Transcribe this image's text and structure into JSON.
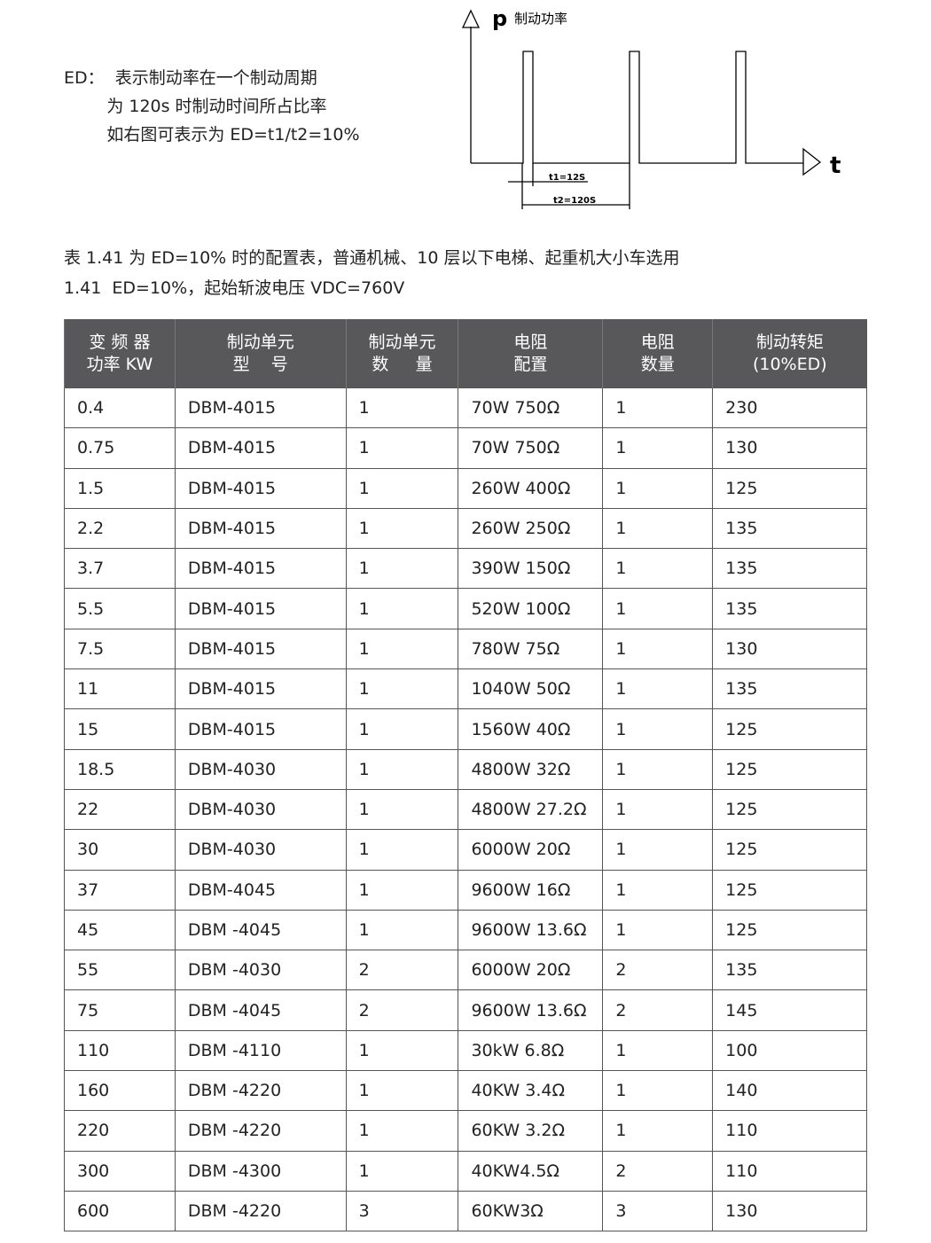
{
  "intro": {
    "lines": [
      "ED：  表示制动率在一个制动周期",
      "        为 120s 时制动时间所占比率",
      "        如右图可表示为 ED=t1/t2=10%"
    ]
  },
  "diagram": {
    "y_label": "p",
    "y_caption": "制动功率",
    "x_label": "t",
    "t1_label": "t1=12S",
    "t2_label": "t2=120S"
  },
  "notes": [
    "表 1.41 为 ED=10% 时的配置表，普通机械、10 层以下电梯、起重机大小车选用",
    "1.41  ED=10%，起始斩波电压 VDC=760V"
  ],
  "table": {
    "headers": [
      "变 频 器\n功率 KW",
      "制动单元\n型    号",
      "制动单元\n数     量",
      "电阻\n配置",
      "电阻\n数量",
      "制动转矩\n(10%ED)"
    ],
    "rows": [
      [
        "0.4",
        "DBM-4015",
        "1",
        "70W  750Ω",
        "1",
        "230"
      ],
      [
        "0.75",
        "DBM-4015",
        "1",
        "70W  750Ω",
        "1",
        "130"
      ],
      [
        "1.5",
        "DBM-4015",
        "1",
        "260W 400Ω",
        "1",
        "125"
      ],
      [
        "2.2",
        "DBM-4015",
        "1",
        "260W  250Ω",
        "1",
        "135"
      ],
      [
        "3.7",
        "DBM-4015",
        "1",
        "390W  150Ω",
        "1",
        "135"
      ],
      [
        "5.5",
        "DBM-4015",
        "1",
        "520W  100Ω",
        "1",
        "135"
      ],
      [
        "7.5",
        "DBM-4015",
        "1",
        "780W   75Ω",
        "1",
        "130"
      ],
      [
        "11",
        "DBM-4015",
        "1",
        "1040W  50Ω",
        "1",
        "135"
      ],
      [
        "15",
        "DBM-4015",
        "1",
        "1560W  40Ω",
        "1",
        "125"
      ],
      [
        "18.5",
        "DBM-4030",
        "1",
        "4800W  32Ω",
        "1",
        "125"
      ],
      [
        "22",
        "DBM-4030",
        "1",
        "4800W 27.2Ω",
        "1",
        "125"
      ],
      [
        "30",
        "DBM-4030",
        "1",
        "6000W  20Ω",
        "1",
        "125"
      ],
      [
        "37",
        "DBM-4045",
        "1",
        "9600W 16Ω",
        "1",
        "125"
      ],
      [
        "45",
        "DBM -4045",
        "1",
        "9600W 13.6Ω",
        "1",
        "125"
      ],
      [
        "55",
        "DBM -4030",
        "2",
        "6000W 20Ω",
        "2",
        "135"
      ],
      [
        "75",
        "DBM -4045",
        "2",
        "9600W 13.6Ω",
        "2",
        "145"
      ],
      [
        "110",
        "DBM -4110",
        "1",
        "30kW  6.8Ω",
        "1",
        "100"
      ],
      [
        "160",
        "DBM -4220",
        "1",
        "40KW 3.4Ω",
        "1",
        "140"
      ],
      [
        "220",
        "DBM -4220",
        "1",
        "60KW 3.2Ω",
        "1",
        "110"
      ],
      [
        "300",
        "DBM -4300",
        "1",
        "40KW4.5Ω",
        "2",
        "110"
      ],
      [
        "600",
        "DBM -4220",
        "3",
        "60KW3Ω",
        "3",
        "130"
      ]
    ]
  }
}
